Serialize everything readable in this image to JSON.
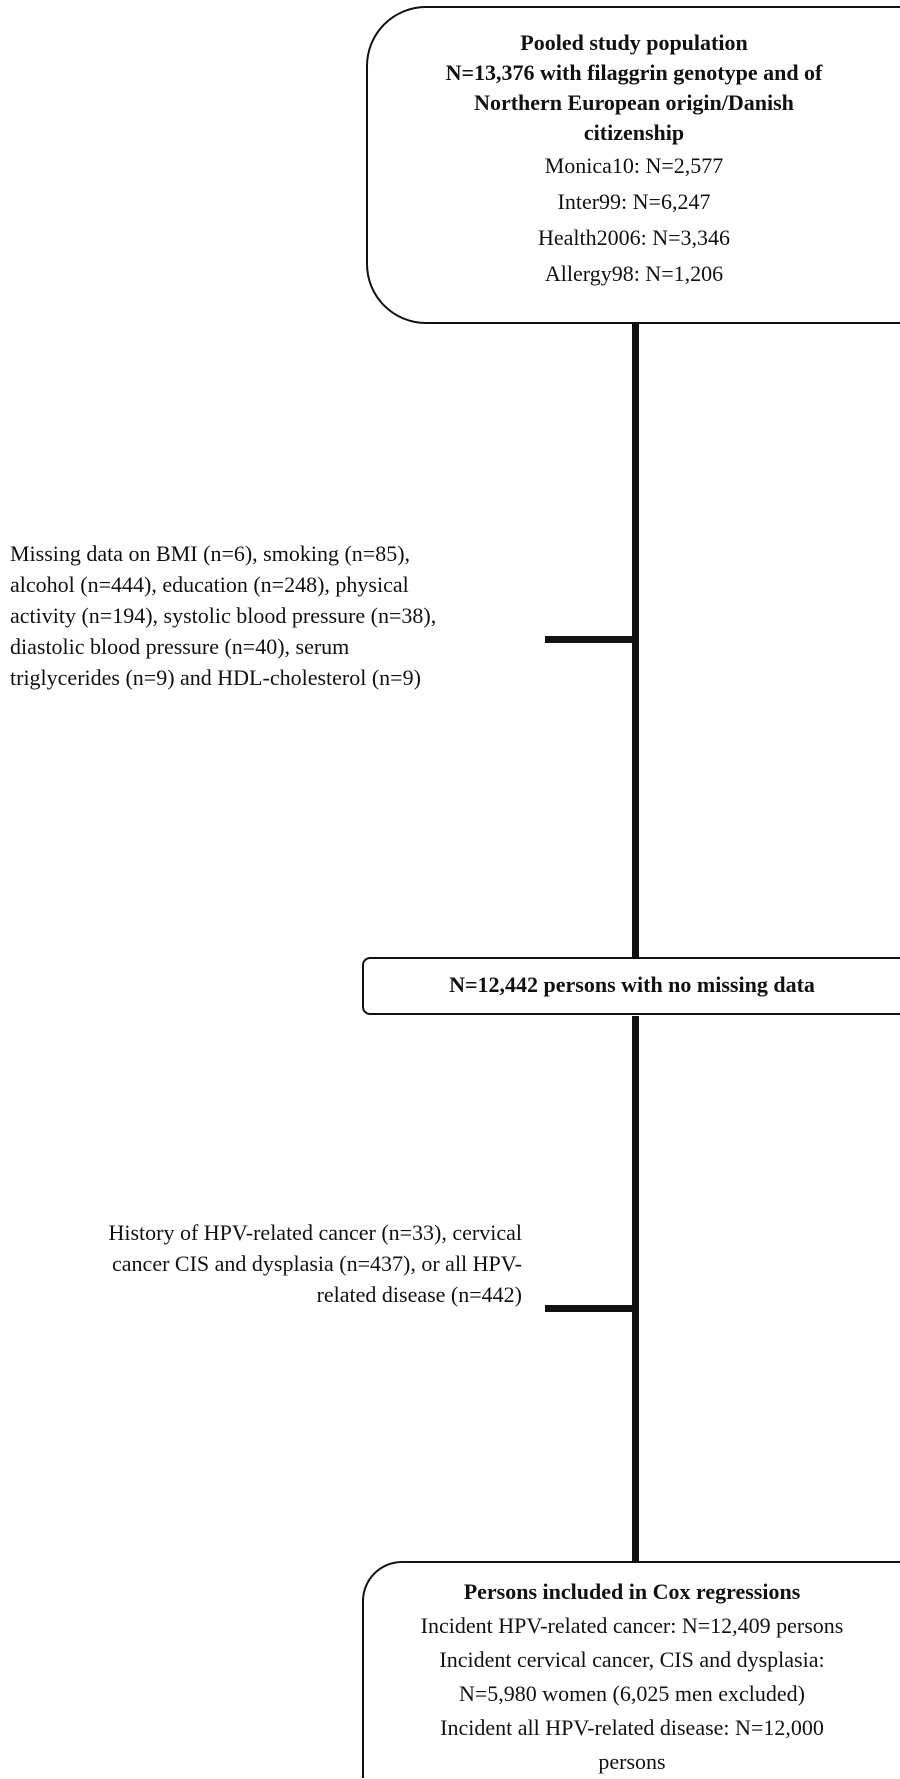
{
  "top_box": {
    "title_lines": [
      "Pooled study population",
      "N=13,376 with filaggrin genotype and of",
      "Northern European origin/Danish",
      "citizenship"
    ],
    "cohorts": [
      "Monica10: N=2,577",
      "Inter99: N=6,247",
      "Health2006: N=3,346",
      "Allergy98: N=1,206"
    ]
  },
  "exclusion_1": {
    "lines": [
      "Missing data on BMI (n=6), smoking (n=85),",
      "alcohol (n=444), education (n=248), physical",
      "activity (n=194), systolic blood pressure (n=38),",
      "diastolic blood pressure (n=40), serum",
      "triglycerides (n=9) and HDL-cholesterol (n=9)"
    ]
  },
  "middle_box": {
    "label": "N=12,442 persons with no missing data"
  },
  "exclusion_2": {
    "lines": [
      "History of HPV-related cancer (n=33), cervical",
      "cancer CIS and dysplasia (n=437), or all HPV-",
      "related disease (n=442)"
    ]
  },
  "bottom_box": {
    "title": "Persons included in Cox regressions",
    "lines": [
      "Incident HPV-related cancer: N=12,409 persons",
      "Incident cervical cancer, CIS and dysplasia:",
      "N=5,980 women (6,025 men excluded)",
      "Incident all HPV-related disease: N=12,000",
      "persons"
    ]
  }
}
